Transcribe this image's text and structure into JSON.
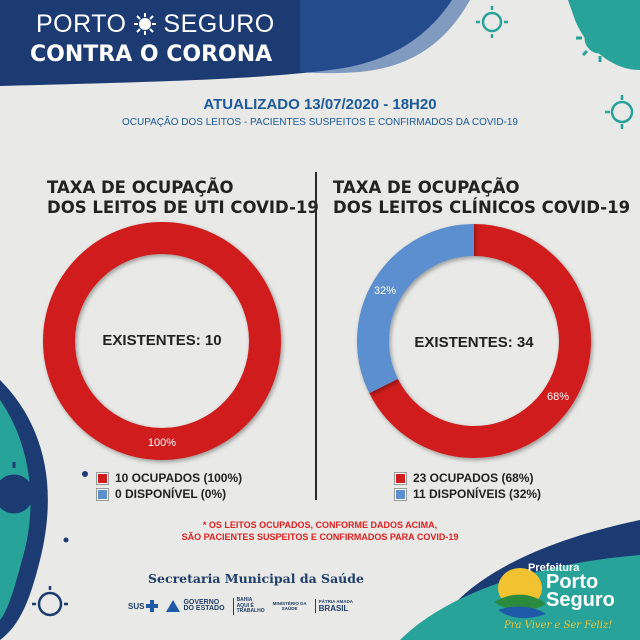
{
  "header": {
    "brand_line1_left": "PORTO",
    "brand_line1_right": "SEGURO",
    "brand_line2": "CONTRA O CORONA"
  },
  "report": {
    "updated": "ATUALIZADO 13/07/2020 - 18H20",
    "subtitle": "OCUPAÇÃO DOS LEITOS - PACIENTES SUSPEITOS E CONFIRMADOS DA COVID-19"
  },
  "colors": {
    "occupied": "#d01c1c",
    "available": "#5b8fcf",
    "accent_blue": "#1c5a9e",
    "footnote_red": "#e02020"
  },
  "chart_data": [
    {
      "type": "pie",
      "title_line1": "TAXA DE OCUPAÇÃO",
      "title_line2": "DOS LEITOS DE UTI COVID-19",
      "center_label": "EXISTENTES: 10",
      "slices": [
        {
          "label": "10 OCUPADOS (100%)",
          "value": 10,
          "percent_label": "100%"
        },
        {
          "label": "0 DISPONÍVEL (0%)",
          "value": 0,
          "percent_label": ""
        }
      ]
    },
    {
      "type": "pie",
      "title_line1": "TAXA DE OCUPAÇÃO",
      "title_line2": "DOS LEITOS CLÍNICOS COVID-19",
      "center_label": "EXISTENTES: 34",
      "slices": [
        {
          "label": "23 OCUPADOS (68%)",
          "value": 23,
          "percent_label": "68%"
        },
        {
          "label": "11 DISPONÍVEIS (32%)",
          "value": 11,
          "percent_label": "32%"
        }
      ]
    }
  ],
  "footnote": {
    "line1": "* OS LEITOS OCUPADOS, CONFORME DADOS ACIMA,",
    "line2": "SÃO PACIENTES SUSPEITOS E CONFIRMADOS PARA COVID-19"
  },
  "footer": {
    "secretaria": "Secretaria Municipal da Saúde",
    "logo_sus": "SUS",
    "logo_governo_1": "GOVERNO",
    "logo_governo_2": "DO ESTADO",
    "logo_bahia_1": "BAHIA",
    "logo_bahia_2": "AQUI É",
    "logo_bahia_3": "TRABALHO",
    "logo_ministerio_1": "MINISTÉRIO DA",
    "logo_ministerio_2": "SAÚDE",
    "logo_patria": "PÁTRIA AMADA",
    "logo_brasil": "BRASIL",
    "prefeitura_label": "Prefeitura",
    "prefeitura_name_1": "Porto",
    "prefeitura_name_2": "Seguro",
    "slogan": "Pra Viver e Ser Feliz!"
  }
}
